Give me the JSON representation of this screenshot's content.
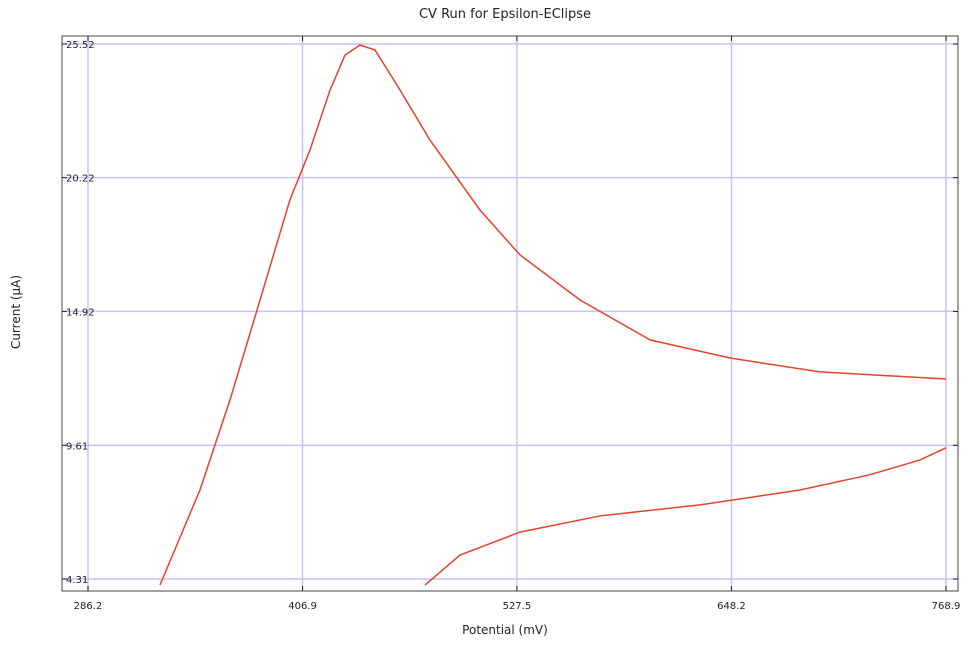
{
  "chart_data": {
    "type": "line",
    "title": "CV Run for Epsilon-EClipse",
    "x_label": "Potential (mV)",
    "y_label": "Current (µA)",
    "x": [
      326.7,
      349.2,
      366.1,
      383.0,
      399.8,
      411.1,
      422.4,
      430.8,
      439.2,
      447.7,
      461.7,
      478.6,
      506.7,
      529.2,
      563.0,
      602.4,
      647.4,
      698.0,
      768.9,
      null,
      475.8,
      495.5,
      529.2,
      574.2,
      630.5,
      686.8,
      725.9,
      754.3,
      768.9
    ],
    "series": [
      {
        "color": "#e8412c",
        "values": [
          4.07,
          7.84,
          11.41,
          15.37,
          19.34,
          21.32,
          23.7,
          25.08,
          25.48,
          25.28,
          23.7,
          21.71,
          18.94,
          17.16,
          15.37,
          13.79,
          13.07,
          12.52,
          12.24,
          null,
          4.07,
          5.26,
          6.17,
          6.81,
          7.25,
          7.84,
          8.44,
          9.03,
          9.51
        ]
      }
    ],
    "xlim": [
      286.2,
      768.9
    ],
    "ylim": [
      4.31,
      25.52
    ],
    "xticks": [
      286.2,
      406.9,
      527.5,
      648.2,
      768.9
    ],
    "yticks": [
      4.31,
      9.61,
      14.92,
      20.22,
      25.52
    ],
    "grid": true,
    "grid_color": "#c4c4f4"
  }
}
